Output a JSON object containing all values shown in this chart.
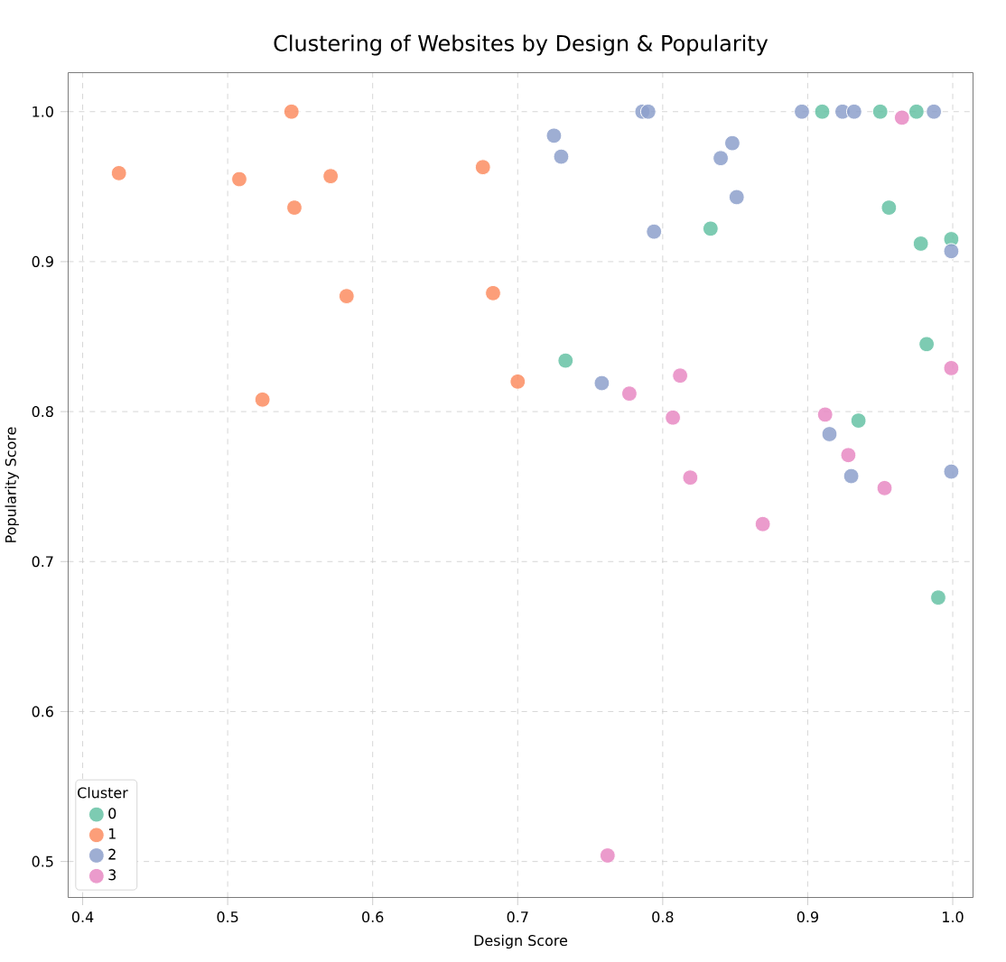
{
  "chart_data": {
    "type": "scatter",
    "title": "Clustering of Websites by Design & Popularity",
    "xlabel": "Design Score",
    "ylabel": "Popularity Score",
    "legend_title": "Cluster",
    "xlim": [
      0.39,
      1.014
    ],
    "ylim": [
      0.476,
      1.026
    ],
    "xticks": [
      0.4,
      0.5,
      0.6,
      0.7,
      0.8,
      0.9,
      {
        "value": 1,
        "label": "1.0"
      }
    ],
    "yticks": [
      0.5,
      0.6,
      0.7,
      0.8,
      0.9,
      {
        "value": 1,
        "label": "1.0"
      }
    ],
    "grid": true,
    "legend": "bottom left",
    "marker": "circle",
    "series": [
      {
        "name": "0",
        "color": "#66c2a5",
        "x": [
          0.91,
          0.95,
          0.975,
          0.956,
          0.978,
          0.999,
          0.833,
          0.733,
          0.982,
          0.935,
          0.99
        ],
        "values": [
          1.0,
          1.0,
          1.0,
          0.936,
          0.912,
          0.915,
          0.922,
          0.834,
          0.845,
          0.794,
          0.676
        ]
      },
      {
        "name": "1",
        "color": "#fc8d62",
        "x": [
          0.425,
          0.508,
          0.544,
          0.546,
          0.571,
          0.582,
          0.524,
          0.676,
          0.683,
          0.7
        ],
        "values": [
          0.959,
          0.955,
          1.0,
          0.936,
          0.957,
          0.877,
          0.808,
          0.963,
          0.879,
          0.82
        ]
      },
      {
        "name": "2",
        "color": "#8da0cb",
        "x": [
          0.786,
          0.79,
          0.725,
          0.73,
          0.794,
          0.84,
          0.848,
          0.851,
          0.896,
          0.924,
          0.932,
          0.987,
          0.999,
          0.758,
          0.915,
          0.93,
          0.999
        ],
        "values": [
          1.0,
          1.0,
          0.984,
          0.97,
          0.92,
          0.969,
          0.979,
          0.943,
          1.0,
          1.0,
          1.0,
          1.0,
          0.907,
          0.819,
          0.785,
          0.757,
          0.76
        ]
      },
      {
        "name": "3",
        "color": "#e78ac3",
        "x": [
          0.965,
          0.812,
          0.777,
          0.807,
          0.999,
          0.912,
          0.928,
          0.953,
          0.819,
          0.869,
          0.762
        ],
        "values": [
          0.996,
          0.824,
          0.812,
          0.796,
          0.829,
          0.798,
          0.771,
          0.749,
          0.756,
          0.725,
          0.504
        ]
      }
    ]
  }
}
